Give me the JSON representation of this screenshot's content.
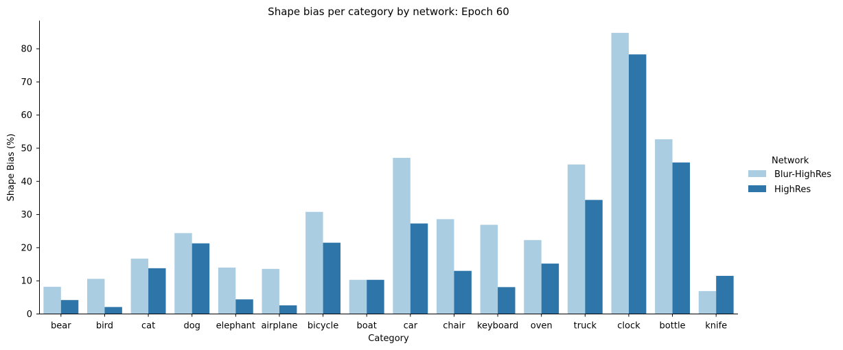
{
  "chart_data": {
    "type": "bar",
    "title": "Shape bias per category by network: Epoch 60",
    "xlabel": "Category",
    "ylabel": "Shape Bias (%)",
    "ylim": [
      0,
      88.5
    ],
    "yticks": [
      0,
      10,
      20,
      30,
      40,
      50,
      60,
      70,
      80
    ],
    "grid": false,
    "legend": {
      "title": "Network",
      "placement": "right"
    },
    "categories": [
      "bear",
      "bird",
      "cat",
      "dog",
      "elephant",
      "airplane",
      "bicycle",
      "boat",
      "car",
      "chair",
      "keyboard",
      "oven",
      "truck",
      "clock",
      "bottle",
      "knife"
    ],
    "series": [
      {
        "name": "Blur-HighRes",
        "color": "#abcde2",
        "values": [
          8.2,
          10.6,
          16.7,
          24.4,
          14.0,
          13.6,
          30.8,
          10.3,
          47.1,
          28.6,
          26.9,
          22.3,
          45.1,
          84.8,
          52.7,
          6.9
        ]
      },
      {
        "name": "HighRes",
        "color": "#2e75a9",
        "values": [
          4.2,
          2.1,
          13.8,
          21.3,
          4.4,
          2.6,
          21.5,
          10.3,
          27.3,
          13.0,
          8.1,
          15.2,
          34.4,
          78.3,
          45.7,
          11.5
        ]
      }
    ]
  }
}
